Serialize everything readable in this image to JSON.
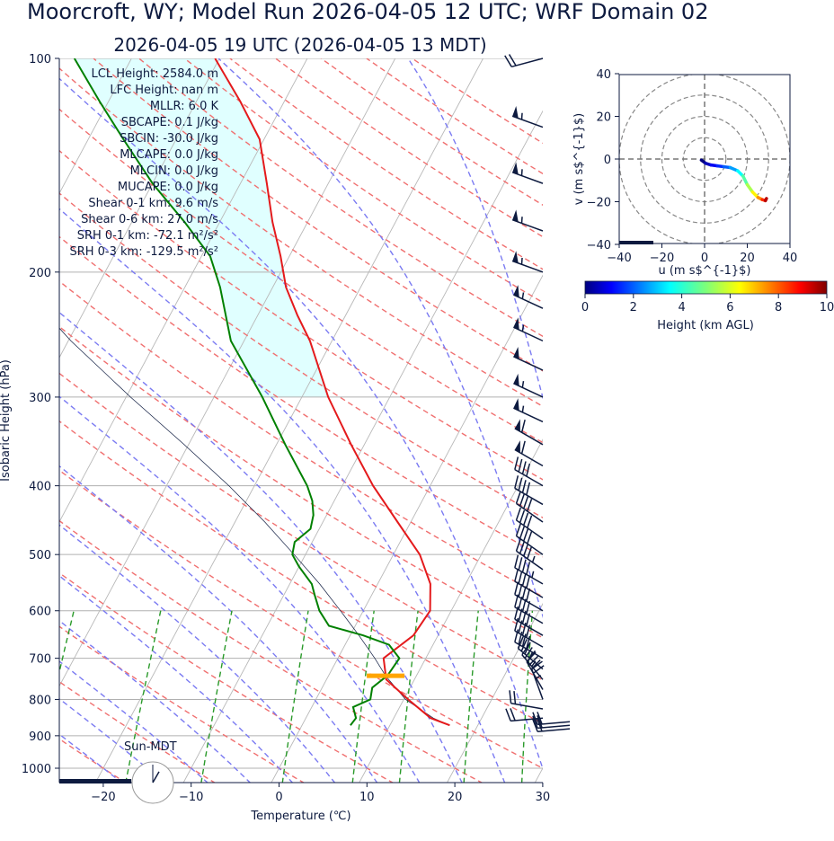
{
  "header": {
    "title": "Moorcroft, WY; Model Run 2026-04-05 12 UTC; WRF Domain 02",
    "subtitle": "2026-04-05 19 UTC  (2026-04-05 13 MDT)"
  },
  "chart_data": [
    {
      "type": "skew-t",
      "xlabel": "Temperature (℃)",
      "ylabel": "Isobaric Height (hPa)",
      "xlim": [
        -25,
        30
      ],
      "ylim": [
        1050,
        100
      ],
      "x_ticks": [
        -20,
        -10,
        0,
        10,
        20,
        30
      ],
      "y_ticks": [
        100,
        200,
        300,
        400,
        500,
        600,
        700,
        800,
        900,
        1000
      ],
      "stats": [
        "LCL Height: 2584.0 m",
        "LFC Height: nan m",
        "MLLR: 6.0 K",
        "SBCAPE: 0.1 J/kg",
        "SBCIN: -30.0 J/kg",
        "MLCAPE: 0.0 J/kg",
        "MLCIN: 0.0 J/kg",
        "MUCAPE: 0.0 J/kg",
        "Shear 0-1 km: 9.6 m/s",
        "Shear 0-6 km: 27.0 m/s",
        "SRH 0-1 km: -72.1 m²/s²",
        "SRH 0-3 km: -129.5 m²/s²"
      ],
      "temperature_profile": {
        "color": "#e41a1c",
        "pressure": [
          870,
          850,
          800,
          750,
          700,
          650,
          600,
          550,
          500,
          450,
          400,
          350,
          300,
          250,
          230,
          210,
          190,
          170,
          150,
          130,
          115,
          100
        ],
        "temperature": [
          16.8,
          14.2,
          10.5,
          6.8,
          5.2,
          7.2,
          7.6,
          6.0,
          3.0,
          -1.5,
          -6.5,
          -11.5,
          -17.0,
          -22.5,
          -25.5,
          -28.5,
          -31.0,
          -34.0,
          -37.0,
          -40.5,
          -45.0,
          -50.5
        ]
      },
      "dewpoint_profile": {
        "color": "#008000",
        "pressure": [
          870,
          850,
          820,
          800,
          770,
          740,
          700,
          670,
          650,
          630,
          600,
          570,
          550,
          520,
          500,
          480,
          460,
          440,
          420,
          400,
          350,
          300,
          250,
          210,
          190,
          170,
          150,
          130,
          115,
          100
        ],
        "dewpoint": [
          5.5,
          5.7,
          4.7,
          6.2,
          5.7,
          6.7,
          7.0,
          5.0,
          1.5,
          -3.0,
          -5.0,
          -6.5,
          -7.5,
          -10.0,
          -11.5,
          -12.0,
          -11.0,
          -11.5,
          -12.5,
          -14.0,
          -19.0,
          -24.5,
          -31.5,
          -36.0,
          -39.0,
          -44.0,
          -50.0,
          -56.0,
          -61.0,
          -66.5
        ]
      },
      "parcel_profile": {
        "color": "#0d1a3f",
        "pressure": [
          870,
          850,
          800,
          741,
          700,
          650,
          600,
          550,
          500,
          450,
          400,
          350,
          300,
          250,
          200,
          150,
          100
        ],
        "temperature": [
          16.8,
          14.5,
          10.2,
          6.5,
          4.2,
          1.0,
          -2.6,
          -6.6,
          -11.3,
          -16.6,
          -22.9,
          -30.5,
          -39.5,
          -49.7,
          -61.0,
          -74.0,
          -90.0
        ]
      },
      "lcl": {
        "pressure": 741,
        "temperature": 6.5,
        "color": "#ffa500"
      },
      "cape_shading_color": "#e0ffff",
      "wind_barbs": {
        "color": "#0d1a3f",
        "pressure": [
          100,
          125,
          150,
          175,
          200,
          225,
          250,
          275,
          300,
          325,
          350,
          375,
          400,
          425,
          450,
          475,
          500,
          525,
          550,
          575,
          600,
          625,
          650,
          675,
          700,
          725,
          750,
          775,
          800,
          825,
          850,
          860,
          870,
          880
        ],
        "speed_kt": [
          20,
          55,
          55,
          55,
          55,
          55,
          55,
          50,
          55,
          55,
          60,
          60,
          40,
          40,
          40,
          40,
          40,
          45,
          45,
          40,
          40,
          40,
          40,
          40,
          40,
          35,
          35,
          30,
          25,
          20,
          20,
          20,
          20,
          20
        ],
        "direction_deg": [
          255,
          290,
          290,
          290,
          290,
          295,
          295,
          295,
          295,
          295,
          300,
          300,
          300,
          300,
          305,
          305,
          305,
          305,
          300,
          300,
          300,
          300,
          300,
          300,
          300,
          310,
          320,
          330,
          340,
          280,
          265,
          265,
          265,
          265
        ]
      },
      "sun_clock": {
        "label": "Sun-MDT",
        "hour": 13,
        "sun_elevation_indicator": 0.52
      }
    },
    {
      "type": "hodograph",
      "xlabel": "u (m s$^{-1}$)",
      "ylabel": "v (m s$^{-1}$)",
      "xlim": [
        -40,
        40
      ],
      "ylim": [
        -40,
        40
      ],
      "x_ticks": [
        -40,
        -20,
        0,
        20,
        40
      ],
      "y_ticks": [
        40,
        20,
        0,
        -20,
        -40
      ],
      "rings": [
        10,
        20,
        30,
        40
      ],
      "points": [
        {
          "u": -1.5,
          "v": -0.5,
          "h": 0.0
        },
        {
          "u": 0.5,
          "v": -2.0,
          "h": 0.5
        },
        {
          "u": 3.0,
          "v": -2.8,
          "h": 1.0
        },
        {
          "u": 6.0,
          "v": -3.2,
          "h": 1.5
        },
        {
          "u": 9.0,
          "v": -3.6,
          "h": 2.0
        },
        {
          "u": 12.0,
          "v": -4.0,
          "h": 2.6
        },
        {
          "u": 15.5,
          "v": -5.5,
          "h": 3.5
        },
        {
          "u": 18.0,
          "v": -8.0,
          "h": 4.5
        },
        {
          "u": 20.0,
          "v": -12.0,
          "h": 5.5
        },
        {
          "u": 22.5,
          "v": -15.5,
          "h": 6.5
        },
        {
          "u": 25.0,
          "v": -18.0,
          "h": 7.5
        },
        {
          "u": 27.0,
          "v": -19.0,
          "h": 8.5
        },
        {
          "u": 28.5,
          "v": -19.5,
          "h": 9.5
        },
        {
          "u": 29.0,
          "v": -18.5,
          "h": 10.0
        }
      ],
      "colorbar": {
        "label": "Height (km AGL)",
        "ticks": [
          0,
          2,
          4,
          6,
          8,
          10
        ],
        "range": [
          0,
          10
        ],
        "colormap": "jet"
      }
    }
  ]
}
